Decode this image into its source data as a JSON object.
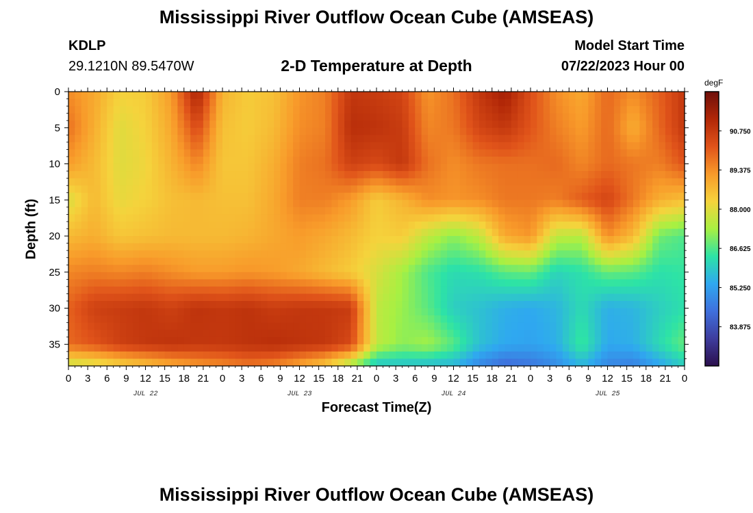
{
  "title": "Mississippi River Outflow Ocean Cube (AMSEAS)",
  "footer_title": "Mississippi River Outflow Ocean Cube (AMSEAS)",
  "station": {
    "id": "KDLP",
    "coords": "29.1210N  89.5470W"
  },
  "subtitle": "2-D Temperature at Depth",
  "model_start": {
    "label": "Model Start Time",
    "value": "07/22/2023 Hour 00"
  },
  "chart_data": {
    "type": "heatmap",
    "xlabel": "Forecast Time(Z)",
    "ylabel": "Depth (ft)",
    "xlim": [
      0,
      96
    ],
    "ylim": [
      0,
      38
    ],
    "y_inverted": true,
    "x_tick_labels": [
      "0",
      "3",
      "6",
      "9",
      "12",
      "15",
      "18",
      "21",
      "0",
      "3",
      "6",
      "9",
      "12",
      "15",
      "18",
      "21",
      "0",
      "3",
      "6",
      "9",
      "12",
      "15",
      "18",
      "21",
      "0",
      "3",
      "6",
      "9",
      "12",
      "15",
      "18",
      "21",
      "0"
    ],
    "day_labels": [
      {
        "label": "JUL 22",
        "hour": 12
      },
      {
        "label": "JUL 23",
        "hour": 36
      },
      {
        "label": "JUL 24",
        "hour": 60
      },
      {
        "label": "JUL 25",
        "hour": 84
      }
    ],
    "y_ticks": [
      0,
      5,
      10,
      15,
      20,
      25,
      30,
      35
    ],
    "colorbar": {
      "unit": "degF",
      "min": 82.5,
      "max": 92.125,
      "tick_values": [
        90.75,
        89.375,
        88.0,
        86.625,
        85.25,
        83.875
      ],
      "tick_labels": [
        "90.750",
        "89.375",
        "88.000",
        "86.625",
        "85.250",
        "83.875"
      ],
      "colors": [
        "#2b0f4d",
        "#3e3d9e",
        "#3f70dd",
        "#2fa8f0",
        "#2de3a6",
        "#a8f042",
        "#f5d33c",
        "#f89a2a",
        "#e0531a",
        "#b12707",
        "#6f0f0a"
      ]
    },
    "grid_hours": [
      0,
      4,
      8,
      12,
      16,
      20,
      24,
      28,
      32,
      36,
      40,
      44,
      48,
      52,
      56,
      60,
      64,
      68,
      72,
      76,
      80,
      84,
      88,
      92,
      96
    ],
    "grid_depths": [
      0,
      5,
      10,
      15,
      20,
      25,
      30,
      35,
      38
    ],
    "values": [
      [
        89.4,
        89.0,
        88.3,
        88.4,
        89.2,
        91.3,
        88.8,
        88.4,
        88.6,
        89.3,
        89.6,
        90.8,
        90.7,
        90.5,
        89.3,
        89.8,
        90.8,
        91.4,
        90.3,
        89.4,
        89.0,
        89.9,
        89.4,
        90.0,
        90.8
      ],
      [
        89.8,
        88.9,
        88.0,
        88.3,
        89.0,
        90.4,
        88.6,
        88.4,
        88.7,
        89.4,
        89.6,
        91.0,
        90.9,
        90.7,
        89.5,
        89.7,
        90.5,
        90.8,
        90.2,
        89.6,
        89.2,
        89.9,
        88.9,
        89.9,
        90.8
      ],
      [
        89.2,
        88.7,
        88.0,
        88.2,
        88.8,
        89.5,
        88.5,
        88.5,
        88.9,
        89.6,
        89.8,
        90.6,
        90.4,
        90.8,
        89.8,
        89.4,
        89.7,
        89.8,
        89.8,
        89.9,
        89.5,
        89.9,
        89.7,
        89.6,
        90.2
      ],
      [
        87.9,
        88.7,
        88.1,
        88.3,
        88.6,
        88.7,
        88.6,
        88.6,
        89.0,
        89.6,
        89.6,
        89.2,
        88.4,
        88.8,
        89.4,
        89.3,
        89.4,
        89.7,
        89.7,
        89.6,
        90.1,
        90.5,
        89.7,
        88.9,
        88.6
      ],
      [
        88.7,
        88.9,
        88.5,
        88.6,
        88.7,
        88.7,
        88.7,
        88.8,
        89.0,
        89.2,
        89.0,
        88.7,
        88.3,
        88.4,
        87.6,
        87.1,
        87.6,
        89.0,
        89.3,
        87.6,
        87.5,
        89.4,
        88.7,
        86.9,
        86.6
      ],
      [
        89.5,
        89.6,
        89.5,
        89.6,
        89.4,
        89.2,
        89.2,
        89.3,
        89.2,
        89.0,
        88.7,
        88.4,
        87.9,
        87.3,
        86.6,
        86.2,
        86.3,
        86.7,
        86.8,
        86.1,
        86.3,
        86.8,
        86.7,
        86.3,
        86.4
      ],
      [
        90.0,
        90.6,
        90.7,
        90.8,
        90.6,
        90.9,
        90.8,
        90.9,
        90.7,
        90.8,
        90.8,
        90.7,
        87.6,
        87.2,
        86.7,
        86.0,
        85.8,
        85.5,
        85.4,
        85.6,
        86.2,
        85.5,
        85.6,
        86.0,
        86.3
      ],
      [
        89.9,
        90.2,
        90.6,
        90.8,
        90.9,
        90.8,
        90.8,
        90.9,
        91.0,
        90.9,
        90.8,
        90.4,
        87.6,
        87.1,
        87.3,
        86.7,
        85.8,
        85.4,
        85.3,
        85.5,
        86.5,
        85.4,
        85.5,
        86.2,
        86.8
      ],
      [
        87.6,
        87.8,
        88.2,
        88.5,
        88.9,
        89.2,
        89.4,
        89.7,
        89.5,
        89.0,
        88.4,
        87.2,
        85.8,
        85.8,
        85.7,
        85.6,
        84.8,
        84.3,
        84.5,
        84.9,
        85.6,
        84.8,
        84.7,
        85.3,
        86.0
      ]
    ]
  }
}
